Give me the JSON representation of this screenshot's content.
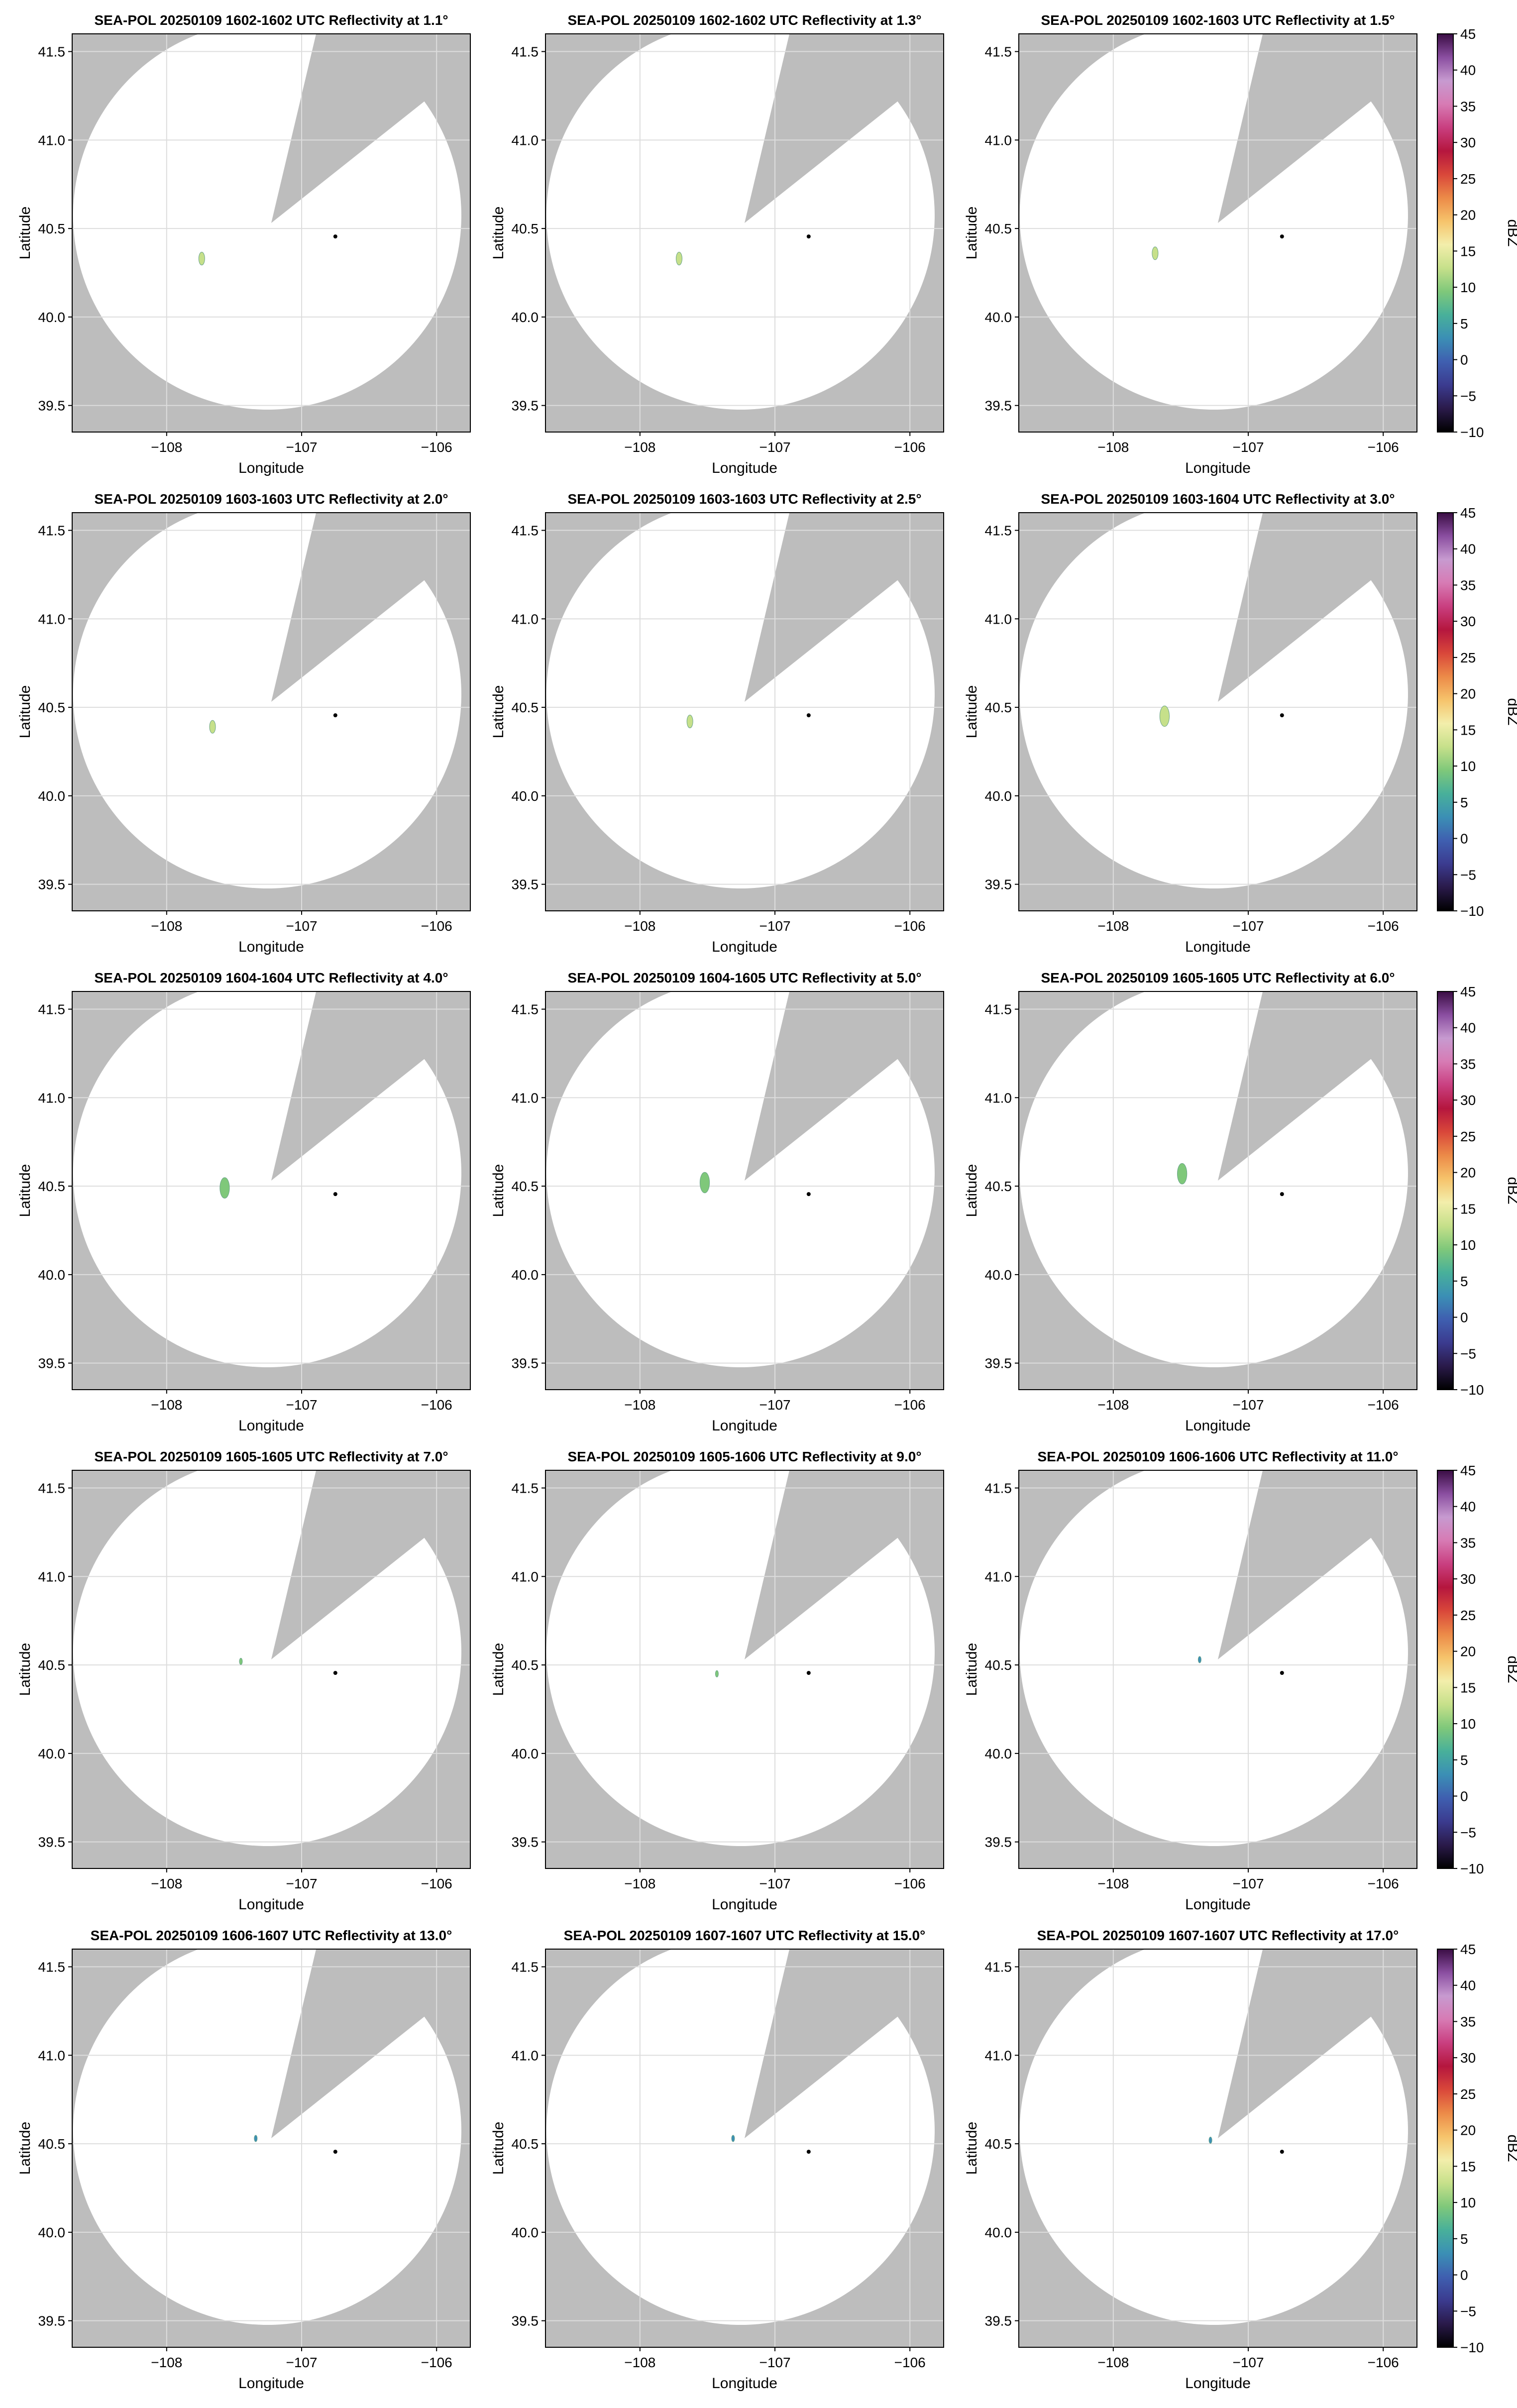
{
  "figure": {
    "xlabel": "Longitude",
    "ylabel": "Latitude",
    "colorbar_label": "dBZ"
  },
  "colors": {
    "background_gray": "#bdbdbd",
    "coverage_white": "#ffffff",
    "grid": "#dddddd",
    "radar_marker": "#000000"
  },
  "colorbar": {
    "range": [
      -10,
      45
    ],
    "ticks": [
      "45",
      "40",
      "35",
      "30",
      "25",
      "20",
      "15",
      "10",
      "5",
      "0",
      "−5",
      "−10"
    ],
    "colormap": [
      "#000000",
      "#2a1a4a",
      "#3b3b8f",
      "#3f5fb0",
      "#3b8fb5",
      "#48b09a",
      "#7fc87a",
      "#c6e08a",
      "#f3eeab",
      "#f6c36b",
      "#ec8a48",
      "#d9473a",
      "#b5163e",
      "#c93f80",
      "#d77bb4",
      "#c79ad0",
      "#8a4ea0",
      "#3a0d44"
    ]
  },
  "chart_data": {
    "type": "heatmap",
    "xlim": [
      -108.7,
      -105.75
    ],
    "ylim": [
      39.35,
      41.6
    ],
    "xticks": [
      -108,
      -107,
      -106
    ],
    "xtick_labels": [
      "−108",
      "−107",
      "−106"
    ],
    "yticks": [
      39.5,
      40.0,
      40.5,
      41.0,
      41.5
    ],
    "ytick_labels": [
      "39.5",
      "40.0",
      "40.5",
      "41.0",
      "41.5"
    ],
    "grid": true,
    "radar_site": {
      "lon": -106.75,
      "lat": 40.455
    },
    "panels": [
      {
        "title": "SEA-POL 20250109 1602-1602 UTC Reflectivity at 1.1°",
        "echoes": [
          {
            "lon": -107.74,
            "lat": 40.33,
            "dbz": 13
          }
        ]
      },
      {
        "title": "SEA-POL 20250109 1602-1602 UTC Reflectivity at 1.3°",
        "echoes": [
          {
            "lon": -107.71,
            "lat": 40.33,
            "dbz": 13
          }
        ]
      },
      {
        "title": "SEA-POL 20250109 1602-1603 UTC Reflectivity at 1.5°",
        "echoes": [
          {
            "lon": -107.69,
            "lat": 40.36,
            "dbz": 13
          }
        ]
      },
      {
        "title": "SEA-POL 20250109 1603-1603 UTC Reflectivity at 2.0°",
        "echoes": [
          {
            "lon": -107.66,
            "lat": 40.39,
            "dbz": 13
          }
        ]
      },
      {
        "title": "SEA-POL 20250109 1603-1603 UTC Reflectivity at 2.5°",
        "echoes": [
          {
            "lon": -107.63,
            "lat": 40.42,
            "dbz": 12
          }
        ]
      },
      {
        "title": "SEA-POL 20250109 1603-1604 UTC Reflectivity at 3.0°",
        "echoes": [
          {
            "lon": -107.62,
            "lat": 40.45,
            "dbz": 12
          }
        ]
      },
      {
        "title": "SEA-POL 20250109 1604-1604 UTC Reflectivity at 4.0°",
        "echoes": [
          {
            "lon": -107.57,
            "lat": 40.49,
            "dbz": 10
          }
        ]
      },
      {
        "title": "SEA-POL 20250109 1604-1605 UTC Reflectivity at 5.0°",
        "echoes": [
          {
            "lon": -107.52,
            "lat": 40.52,
            "dbz": 9
          }
        ]
      },
      {
        "title": "SEA-POL 20250109 1605-1605 UTC Reflectivity at 6.0°",
        "echoes": [
          {
            "lon": -107.49,
            "lat": 40.57,
            "dbz": 9
          }
        ]
      },
      {
        "title": "SEA-POL 20250109 1605-1605 UTC Reflectivity at 7.0°",
        "echoes": [
          {
            "lon": -107.45,
            "lat": 40.52,
            "dbz": 8
          }
        ]
      },
      {
        "title": "SEA-POL 20250109 1605-1606 UTC Reflectivity at 9.0°",
        "echoes": [
          {
            "lon": -107.43,
            "lat": 40.45,
            "dbz": 8
          }
        ]
      },
      {
        "title": "SEA-POL 20250109 1606-1606 UTC Reflectivity at 11.0°",
        "echoes": [
          {
            "lon": -107.36,
            "lat": 40.53,
            "dbz": 3
          }
        ]
      },
      {
        "title": "SEA-POL 20250109 1606-1607 UTC Reflectivity at 13.0°",
        "echoes": [
          {
            "lon": -107.34,
            "lat": 40.53,
            "dbz": 3
          }
        ]
      },
      {
        "title": "SEA-POL 20250109 1607-1607 UTC Reflectivity at 15.0°",
        "echoes": [
          {
            "lon": -107.31,
            "lat": 40.53,
            "dbz": 3
          }
        ]
      },
      {
        "title": "SEA-POL 20250109 1607-1607 UTC Reflectivity at 17.0°",
        "echoes": [
          {
            "lon": -107.28,
            "lat": 40.52,
            "dbz": 3
          }
        ]
      }
    ]
  }
}
